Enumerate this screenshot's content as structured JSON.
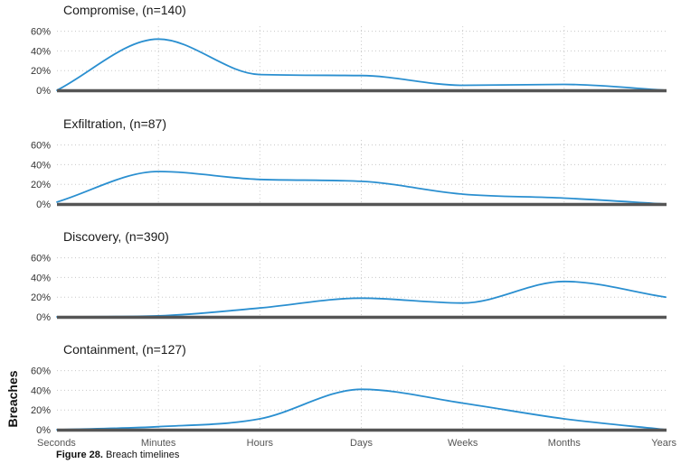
{
  "chart_data": {
    "type": "area",
    "ylabel": "Breaches",
    "categories": [
      "Seconds",
      "Minutes",
      "Hours",
      "Days",
      "Weeks",
      "Months",
      "Years"
    ],
    "y_ticks": [
      "0%",
      "20%",
      "40%",
      "60%"
    ],
    "ylim": [
      0,
      65
    ],
    "grid": true,
    "line_color": "#2a8fd0",
    "baseline_color": "#555555",
    "panels": [
      {
        "title": "Compromise, (n=140)",
        "values": [
          0,
          52,
          16,
          15,
          5,
          6,
          0
        ]
      },
      {
        "title": "Exfiltration, (n=87)",
        "values": [
          2,
          33,
          25,
          23,
          10,
          6,
          0
        ]
      },
      {
        "title": "Discovery, (n=390)",
        "values": [
          0,
          1,
          9,
          19,
          14,
          36,
          20
        ]
      },
      {
        "title": "Containment, (n=127)",
        "values": [
          0,
          3,
          11,
          41,
          27,
          11,
          0
        ]
      }
    ]
  },
  "caption": {
    "label": "Figure 28.",
    "text": " Breach timelines"
  }
}
